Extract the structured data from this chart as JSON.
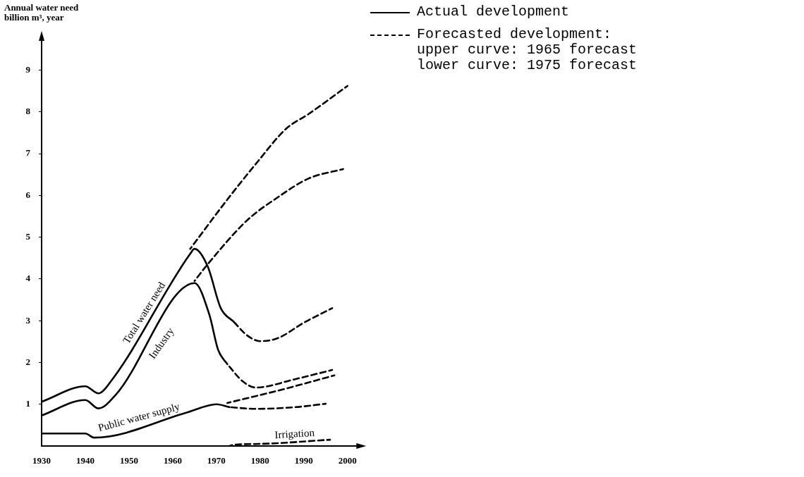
{
  "chart_data": {
    "type": "line",
    "ylabel": "Annual water need\nbillion m³, year",
    "xlim": [
      1930,
      2003
    ],
    "xticks": [
      1930,
      1940,
      1950,
      1960,
      1970,
      1980,
      1990,
      2000
    ],
    "ylim": [
      0,
      9.8
    ],
    "yticks": [
      1,
      2,
      3,
      4,
      5,
      6,
      7,
      8,
      9
    ],
    "legend": false,
    "annotations": [
      "Actual development",
      "Forecasted development:\nupper curve: 1965 forecast\nlower curve: 1975 forecast"
    ],
    "series": [
      {
        "name": "Total water need",
        "color": "#000000",
        "line_style": "solid",
        "x": [
          1930,
          1940,
          1943,
          1946,
          1964,
          1965,
          1968,
          1971,
          1974
        ],
        "values": [
          1.06,
          1.43,
          1.26,
          1.57,
          4.6,
          4.72,
          4.3,
          3.3,
          2.97
        ]
      },
      {
        "name": "Industry",
        "color": "#000000",
        "line_style": "solid",
        "x": [
          1930,
          1940,
          1943,
          1947,
          1965,
          1968.4,
          1970.4,
          1972.5
        ],
        "values": [
          0.73,
          1.1,
          0.9,
          1.23,
          3.9,
          3.14,
          2.3,
          1.96
        ]
      },
      {
        "name": "Public water supply",
        "color": "#000000",
        "line_style": "solid",
        "x": [
          1930,
          1940,
          1942,
          1963.5,
          1970,
          1973
        ],
        "values": [
          0.3,
          0.3,
          0.2,
          0.81,
          1.0,
          0.93
        ]
      },
      {
        "name": "Irrigation",
        "color": "#000000",
        "line_style": "dashed",
        "x": [
          1973,
          1974,
          1980,
          1996
        ],
        "values": [
          0,
          0.03,
          0.05,
          0.15
        ]
      },
      {
        "color": "#000000",
        "line_style": "dashed",
        "x": [
          1964,
          1972.5,
          1979,
          1986,
          1991,
          2000
        ],
        "values": [
          4.72,
          5.9,
          6.75,
          7.6,
          7.94,
          8.62
        ]
      },
      {
        "color": "#000000",
        "line_style": "dashed",
        "x": [
          1965,
          1968,
          1977,
          1984,
          1991,
          1999
        ],
        "values": [
          3.95,
          4.35,
          5.4,
          5.95,
          6.4,
          6.63
        ]
      },
      {
        "color": "#000000",
        "line_style": "dashed",
        "x": [
          1974,
          1977,
          1980,
          1984,
          1990,
          1996.5
        ],
        "values": [
          2.97,
          2.65,
          2.51,
          2.58,
          2.95,
          3.3
        ]
      },
      {
        "color": "#000000",
        "line_style": "dashed",
        "x": [
          1972.5,
          1976,
          1979,
          1988,
          1996.5
        ],
        "values": [
          1.96,
          1.55,
          1.4,
          1.6,
          1.82
        ]
      },
      {
        "color": "#000000",
        "line_style": "dashed",
        "x": [
          1972.5,
          1985,
          1997
        ],
        "values": [
          1.03,
          1.35,
          1.69
        ]
      },
      {
        "color": "#000000",
        "line_style": "dashed",
        "x": [
          1973,
          1979,
          1988,
          1995
        ],
        "values": [
          0.93,
          0.89,
          0.93,
          1.01
        ]
      }
    ]
  }
}
